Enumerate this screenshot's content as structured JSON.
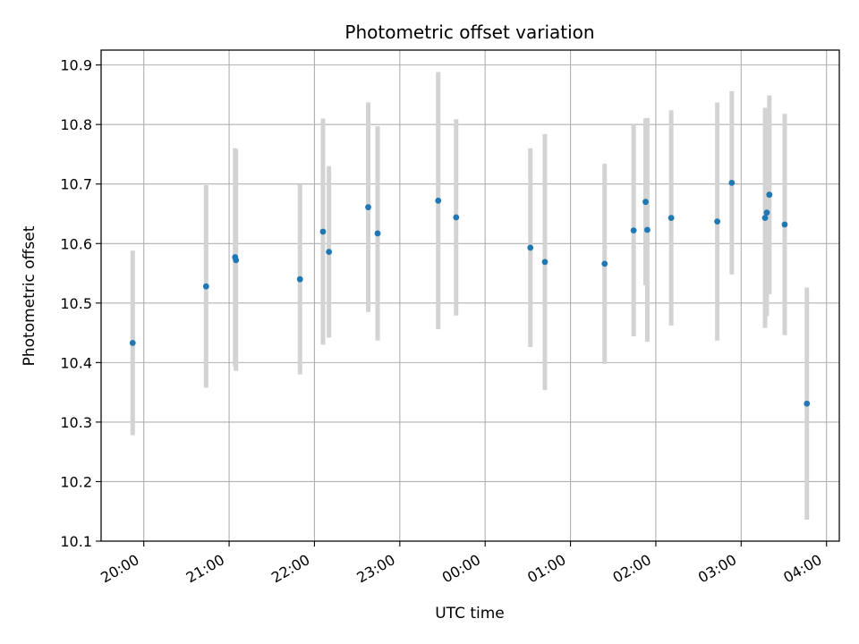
{
  "chart_data": {
    "type": "scatter",
    "title": "Photometric offset variation",
    "xlabel": "UTC time",
    "ylabel": "Photometric offset",
    "x_unit": "hours since 00:00 UTC",
    "xlim": [
      -4.5,
      4.15
    ],
    "ylim": [
      10.1,
      10.925
    ],
    "x_ticks": [
      {
        "value": -4,
        "label": "20:00"
      },
      {
        "value": -3,
        "label": "21:00"
      },
      {
        "value": -2,
        "label": "22:00"
      },
      {
        "value": -1,
        "label": "23:00"
      },
      {
        "value": 0,
        "label": "00:00"
      },
      {
        "value": 1,
        "label": "01:00"
      },
      {
        "value": 2,
        "label": "02:00"
      },
      {
        "value": 3,
        "label": "03:00"
      },
      {
        "value": 4,
        "label": "04:00"
      }
    ],
    "y_ticks": [
      {
        "value": 10.1,
        "label": "10.1"
      },
      {
        "value": 10.2,
        "label": "10.2"
      },
      {
        "value": 10.3,
        "label": "10.3"
      },
      {
        "value": 10.4,
        "label": "10.4"
      },
      {
        "value": 10.5,
        "label": "10.5"
      },
      {
        "value": 10.6,
        "label": "10.6"
      },
      {
        "value": 10.7,
        "label": "10.7"
      },
      {
        "value": 10.8,
        "label": "10.8"
      },
      {
        "value": 10.9,
        "label": "10.9"
      }
    ],
    "grid": true,
    "marker_color": "#1f77b4",
    "errorbar_color": "#d3d3d3",
    "points": [
      {
        "x": -4.13,
        "y": 10.433,
        "err": 0.155
      },
      {
        "x": -3.27,
        "y": 10.528,
        "err": 0.17
      },
      {
        "x": -2.93,
        "y": 10.577,
        "err": 0.183
      },
      {
        "x": -2.92,
        "y": 10.572,
        "err": 0.186
      },
      {
        "x": -2.17,
        "y": 10.54,
        "err": 0.16
      },
      {
        "x": -1.9,
        "y": 10.62,
        "err": 0.19
      },
      {
        "x": -1.83,
        "y": 10.586,
        "err": 0.144
      },
      {
        "x": -1.37,
        "y": 10.661,
        "err": 0.176
      },
      {
        "x": -1.26,
        "y": 10.617,
        "err": 0.18
      },
      {
        "x": -0.55,
        "y": 10.672,
        "err": 0.216
      },
      {
        "x": -0.34,
        "y": 10.644,
        "err": 0.165
      },
      {
        "x": 0.53,
        "y": 10.593,
        "err": 0.167
      },
      {
        "x": 0.7,
        "y": 10.569,
        "err": 0.215
      },
      {
        "x": 1.4,
        "y": 10.566,
        "err": 0.168
      },
      {
        "x": 1.74,
        "y": 10.622,
        "err": 0.178
      },
      {
        "x": 1.88,
        "y": 10.67,
        "err": 0.14
      },
      {
        "x": 1.9,
        "y": 10.623,
        "err": 0.188
      },
      {
        "x": 2.18,
        "y": 10.643,
        "err": 0.181
      },
      {
        "x": 2.72,
        "y": 10.637,
        "err": 0.2
      },
      {
        "x": 2.89,
        "y": 10.702,
        "err": 0.154
      },
      {
        "x": 3.28,
        "y": 10.643,
        "err": 0.185
      },
      {
        "x": 3.3,
        "y": 10.652,
        "err": 0.174
      },
      {
        "x": 3.33,
        "y": 10.682,
        "err": 0.167
      },
      {
        "x": 3.51,
        "y": 10.632,
        "err": 0.186
      },
      {
        "x": 3.77,
        "y": 10.331,
        "err": 0.195
      }
    ]
  }
}
